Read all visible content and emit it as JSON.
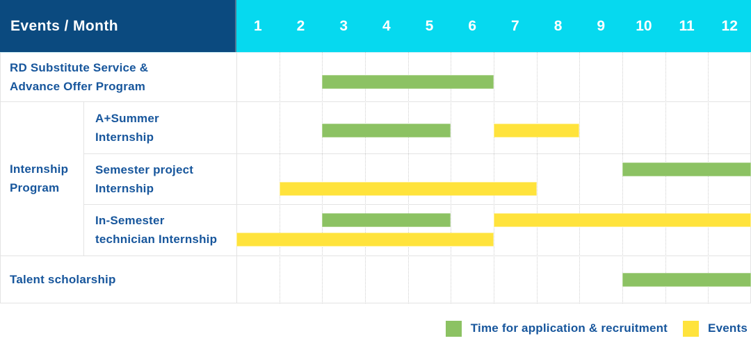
{
  "colors": {
    "header_navy": "#0b4a7f",
    "header_cyan": "#06d9ef",
    "application_green": "#8cc263",
    "event_yellow": "#ffe33c",
    "text_blue": "#17569c"
  },
  "chart_data": {
    "type": "table",
    "subtype": "gantt",
    "corner_label": "Events / Month",
    "x_unit": "month",
    "x_range": [
      1,
      12
    ],
    "months": [
      "1",
      "2",
      "3",
      "4",
      "5",
      "6",
      "7",
      "8",
      "9",
      "10",
      "11",
      "12"
    ],
    "groups": [
      {
        "label_lines": [
          "Internship",
          "Program"
        ],
        "row_span": [
          1,
          3
        ]
      }
    ],
    "rows": [
      {
        "label_lines": [
          "RD Substitute Service &",
          "Advance Offer Program"
        ],
        "indent": "full",
        "bars": [
          {
            "type": "application",
            "start": 3,
            "end": 6,
            "lane": "single"
          }
        ]
      },
      {
        "label_lines": [
          "A+Summer",
          "Internship"
        ],
        "indent": "sub",
        "bars": [
          {
            "type": "application",
            "start": 3,
            "end": 5,
            "lane": "single"
          },
          {
            "type": "event",
            "start": 7,
            "end": 8,
            "lane": "single"
          }
        ]
      },
      {
        "label_lines": [
          "Semester project",
          "Internship"
        ],
        "indent": "sub",
        "bars": [
          {
            "type": "application",
            "start": 10,
            "end": 12,
            "lane": "upper"
          },
          {
            "type": "event",
            "start": 2,
            "end": 7,
            "lane": "lower"
          }
        ]
      },
      {
        "label_lines": [
          "In-Semester",
          "technician Internship"
        ],
        "indent": "sub",
        "bars": [
          {
            "type": "application",
            "start": 3,
            "end": 5,
            "lane": "upper"
          },
          {
            "type": "event",
            "start": 7,
            "end": 12,
            "lane": "upper"
          },
          {
            "type": "event",
            "start": 1,
            "end": 6,
            "lane": "lower"
          }
        ]
      },
      {
        "label_lines": [
          "Talent scholarship"
        ],
        "indent": "full",
        "bars": [
          {
            "type": "application",
            "start": 10,
            "end": 12,
            "lane": "single"
          }
        ]
      }
    ],
    "legend": [
      {
        "type": "application",
        "label": "Time for application & recruitment"
      },
      {
        "type": "event",
        "label": "Events"
      }
    ]
  }
}
